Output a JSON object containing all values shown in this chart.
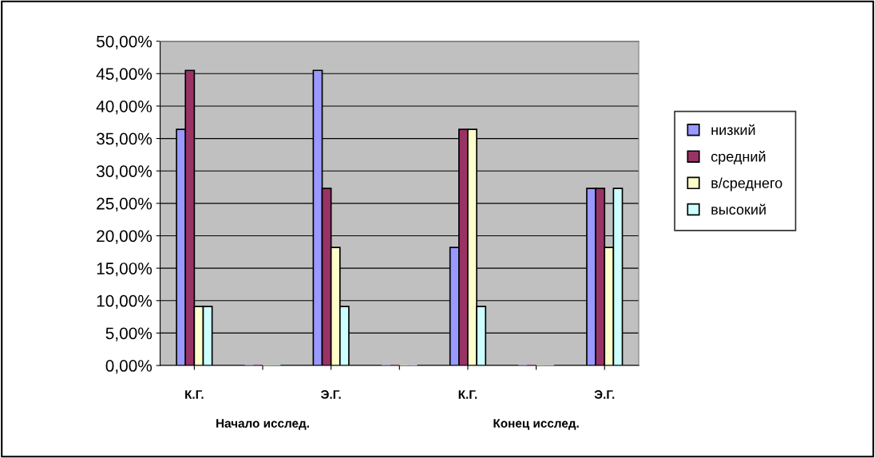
{
  "chart_data": {
    "type": "bar",
    "categories": [
      "К.Г.",
      null,
      "Э.Г.",
      null,
      "К.Г.",
      null,
      "Э.Г."
    ],
    "series": [
      {
        "name": "низкий",
        "color": "#9999ff",
        "values": [
          36.4,
          0,
          45.5,
          0,
          18.2,
          0,
          27.3
        ]
      },
      {
        "name": "средний",
        "color": "#993366",
        "values": [
          45.5,
          0,
          27.3,
          0,
          36.4,
          0,
          27.3
        ]
      },
      {
        "name": "в/среднего",
        "color": "#ffffcc",
        "values": [
          9.1,
          0,
          18.2,
          0,
          36.4,
          0,
          18.2
        ]
      },
      {
        "name": "высокий",
        "color": "#ccffff",
        "values": [
          9.1,
          0,
          9.1,
          0,
          9.1,
          0,
          27.3
        ]
      }
    ],
    "ylim": [
      0,
      50
    ],
    "yticks": [
      {
        "value": 0,
        "label": "0,00%"
      },
      {
        "value": 5,
        "label": "5,00%"
      },
      {
        "value": 10,
        "label": "10,00%"
      },
      {
        "value": 15,
        "label": "15,00%"
      },
      {
        "value": 20,
        "label": "20,00%"
      },
      {
        "value": 25,
        "label": "25,00%"
      },
      {
        "value": 30,
        "label": "30,00%"
      },
      {
        "value": 35,
        "label": "35,00%"
      },
      {
        "value": 40,
        "label": "40,00%"
      },
      {
        "value": 45,
        "label": "45,00%"
      },
      {
        "value": 50,
        "label": "50,00%"
      }
    ],
    "annotations": [
      "Начало исслед.",
      "Конец исслед."
    ],
    "grid": "y",
    "legend": "right"
  }
}
